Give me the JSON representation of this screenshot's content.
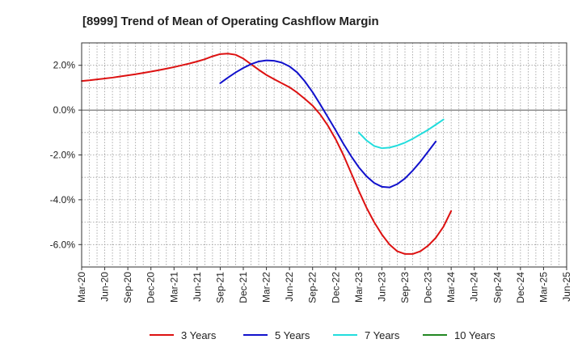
{
  "chart_data": {
    "type": "line",
    "title": "[8999]  Trend of Mean of Operating Cashflow Margin",
    "xlabel": "",
    "ylabel": "",
    "ylim": [
      -7.0,
      3.0
    ],
    "y_ticks": [
      2.0,
      0.0,
      -2.0,
      -4.0,
      -6.0
    ],
    "y_tick_labels": [
      "2.0%",
      "0.0%",
      "-2.0%",
      "-4.0%",
      "-6.0%"
    ],
    "x_tick_labels": [
      "Mar-20",
      "Jun-20",
      "Sep-20",
      "Dec-20",
      "Mar-21",
      "Jun-21",
      "Sep-21",
      "Dec-21",
      "Mar-22",
      "Jun-22",
      "Sep-22",
      "Dec-22",
      "Mar-23",
      "Jun-23",
      "Sep-23",
      "Dec-23",
      "Mar-24",
      "Jun-24",
      "Sep-24",
      "Dec-24",
      "Mar-25",
      "Jun-25"
    ],
    "grid": true,
    "legend_position": "bottom",
    "series": [
      {
        "name": "3 Years",
        "color": "#dd1111",
        "start_index": 0,
        "values": [
          1.3,
          1.33,
          1.37,
          1.41,
          1.45,
          1.5,
          1.55,
          1.6,
          1.66,
          1.72,
          1.78,
          1.85,
          1.92,
          2.0,
          2.08,
          2.17,
          2.27,
          2.4,
          2.5,
          2.52,
          2.47,
          2.3,
          2.05,
          1.8,
          1.57,
          1.38,
          1.2,
          1.02,
          0.78,
          0.5,
          0.2,
          -0.2,
          -0.7,
          -1.3,
          -2.0,
          -2.8,
          -3.6,
          -4.35,
          -5.0,
          -5.55,
          -6.0,
          -6.3,
          -6.42,
          -6.42,
          -6.3,
          -6.05,
          -5.7,
          -5.2,
          -4.5
        ]
      },
      {
        "name": "5 Years",
        "color": "#1111cc",
        "start_index": 18,
        "values": [
          1.2,
          1.45,
          1.68,
          1.88,
          2.05,
          2.17,
          2.22,
          2.2,
          2.12,
          1.95,
          1.68,
          1.28,
          0.8,
          0.25,
          -0.32,
          -0.9,
          -1.5,
          -2.05,
          -2.55,
          -2.95,
          -3.25,
          -3.42,
          -3.45,
          -3.3,
          -3.05,
          -2.7,
          -2.3,
          -1.85,
          -1.4
        ]
      },
      {
        "name": "7 Years",
        "color": "#22dddd",
        "start_index": 36,
        "values": [
          -1.0,
          -1.35,
          -1.6,
          -1.7,
          -1.67,
          -1.58,
          -1.45,
          -1.28,
          -1.08,
          -0.88,
          -0.65,
          -0.42
        ]
      },
      {
        "name": "10 Years",
        "color": "#228822",
        "start_index": null,
        "values": []
      }
    ]
  }
}
